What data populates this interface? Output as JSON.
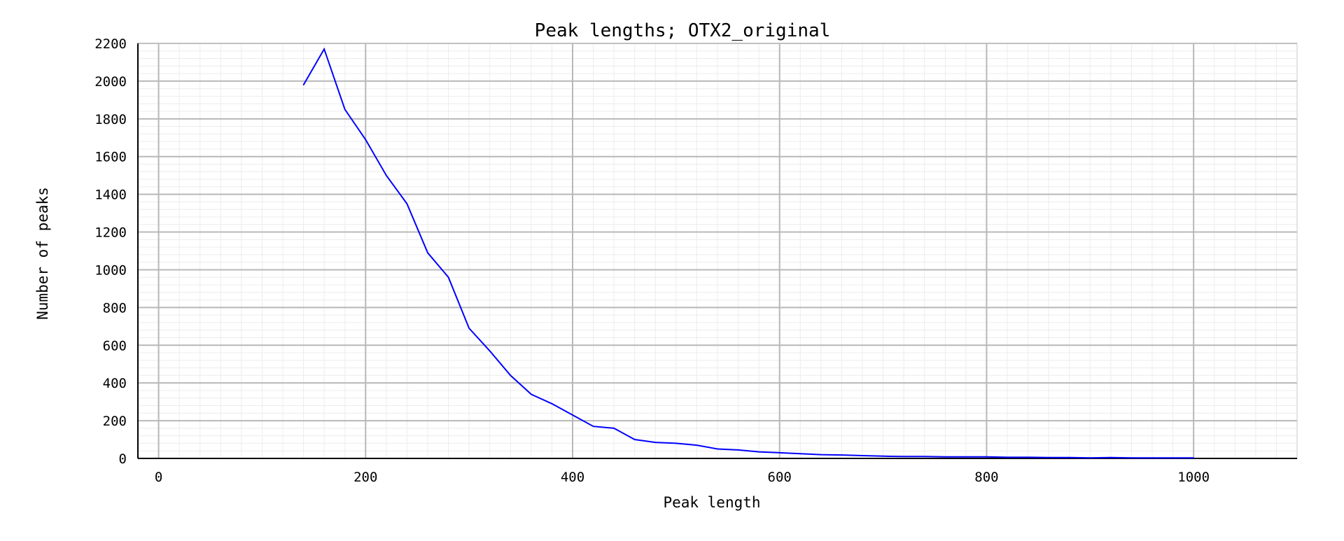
{
  "chart_data": {
    "type": "line",
    "title": "Peak lengths; OTX2_original",
    "xlabel": "Peak length",
    "ylabel": "Number of peaks",
    "xlim": [
      -20,
      1100
    ],
    "ylim": [
      0,
      2200
    ],
    "x_ticks": [
      0,
      200,
      400,
      600,
      800,
      1000
    ],
    "y_ticks": [
      0,
      200,
      400,
      600,
      800,
      1000,
      1200,
      1400,
      1600,
      1800,
      2000,
      2200
    ],
    "x_tick_labels": [
      "0",
      "200",
      "400",
      "600",
      "800",
      "1000"
    ],
    "y_tick_labels": [
      "0",
      "200",
      "400",
      "600",
      "800",
      "1000",
      "1200",
      "1400",
      "1600",
      "1800",
      "2000",
      "2200"
    ],
    "grid": true,
    "legend": "none",
    "line_color": "#0000ff",
    "series": [
      {
        "x": [
          140,
          160,
          180,
          200,
          220,
          240,
          260,
          280,
          300,
          320,
          340,
          360,
          380,
          400,
          420,
          440,
          460,
          480,
          500,
          520,
          540,
          560,
          580,
          600,
          620,
          640,
          660,
          680,
          700,
          720,
          740,
          760,
          780,
          800,
          820,
          840,
          860,
          880,
          900,
          920,
          940,
          960,
          980,
          1000
        ],
        "y": [
          1980,
          2170,
          1850,
          1690,
          1500,
          1350,
          1090,
          960,
          690,
          570,
          440,
          340,
          290,
          230,
          170,
          160,
          100,
          85,
          80,
          70,
          50,
          45,
          35,
          30,
          25,
          20,
          18,
          15,
          12,
          10,
          10,
          8,
          8,
          8,
          6,
          6,
          5,
          5,
          3,
          5,
          3,
          3,
          3,
          3
        ]
      }
    ]
  }
}
